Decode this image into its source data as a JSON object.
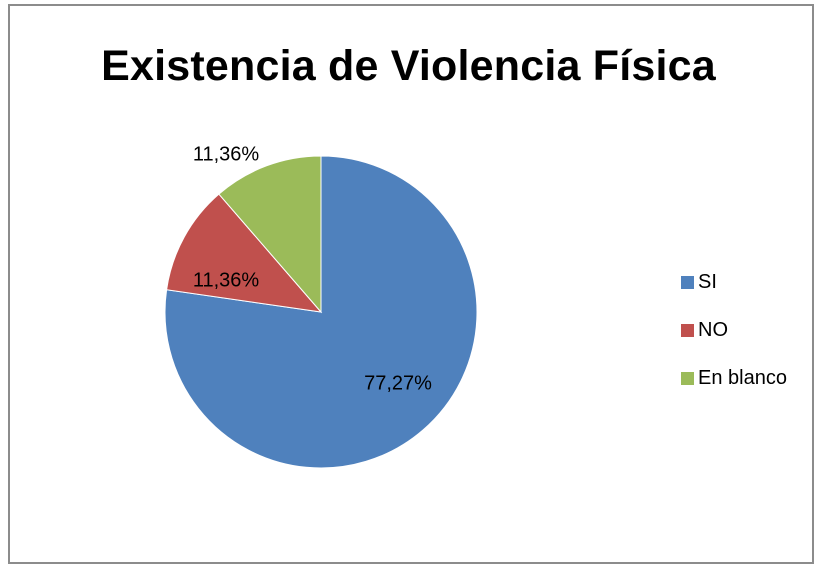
{
  "chart_data": {
    "type": "pie",
    "title": "Existencia de Violencia Física",
    "slices": [
      {
        "label": "SI",
        "value": 77.27,
        "display": "77,27%",
        "color": "#4f81bd"
      },
      {
        "label": "NO",
        "value": 11.36,
        "display": "11,36%",
        "color": "#c0504d"
      },
      {
        "label": "En blanco",
        "value": 11.36,
        "display": "11,36%",
        "color": "#9bbb59"
      }
    ],
    "legend_position": "right"
  }
}
